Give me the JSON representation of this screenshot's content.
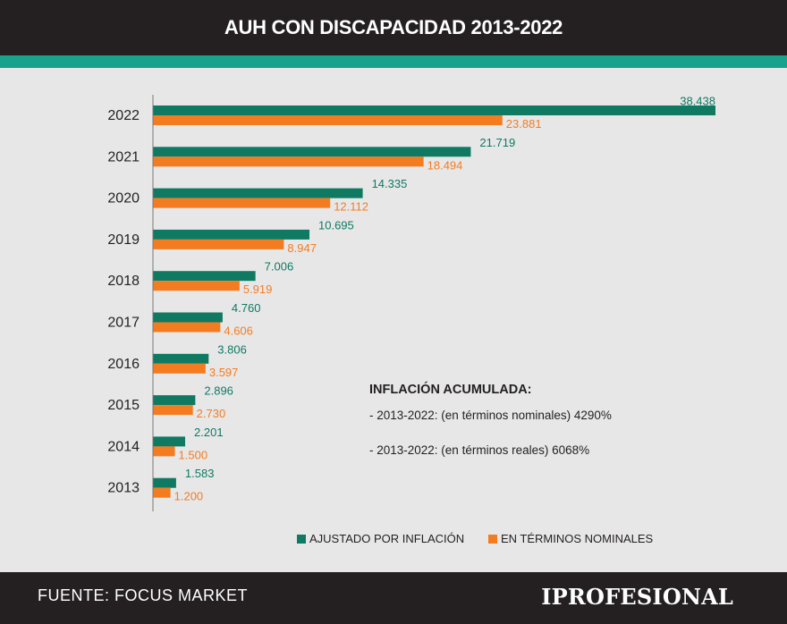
{
  "header": {
    "title": "AUH CON DISCAPACIDAD 2013-2022"
  },
  "footer": {
    "source": "FUENTE: FOCUS MARKET",
    "brand": "IPROFESIONAL"
  },
  "notes": {
    "title": "INFLACIÓN ACUMULADA:",
    "line1": "- 2013-2022: (en términos nominales) 4290%",
    "line2": "- 2013-2022: (en términos reales) 6068%"
  },
  "colors": {
    "adjusted": "#0f7a61",
    "nominal": "#f47c20",
    "header_bg": "#242021",
    "strip": "#1aa38c",
    "background": "#e7e7e8"
  },
  "chart_data": {
    "type": "bar",
    "orientation": "horizontal",
    "categories": [
      "2022",
      "2021",
      "2020",
      "2019",
      "2018",
      "2017",
      "2016",
      "2015",
      "2014",
      "2013"
    ],
    "series": [
      {
        "name": "AJUSTADO POR INFLACIÓN",
        "values": [
          38438,
          21719,
          14335,
          10695,
          7006,
          4760,
          3806,
          2896,
          2201,
          1583
        ],
        "labels": [
          "38.438",
          "21.719",
          "14.335",
          "10.695",
          "7.006",
          "4.760",
          "3.806",
          "2.896",
          "2.201",
          "1.583"
        ]
      },
      {
        "name": "EN TÉRMINOS NOMINALES",
        "values": [
          23881,
          18494,
          12112,
          8947,
          5919,
          4606,
          3597,
          2730,
          1500,
          1200
        ],
        "labels": [
          "23.881",
          "18.494",
          "12.112",
          "8.947",
          "5.919",
          "4.606",
          "3.597",
          "2.730",
          "1.500",
          "1.200"
        ]
      }
    ],
    "xlim": [
      0,
      38438
    ],
    "grid": false,
    "legend_position": "bottom"
  }
}
